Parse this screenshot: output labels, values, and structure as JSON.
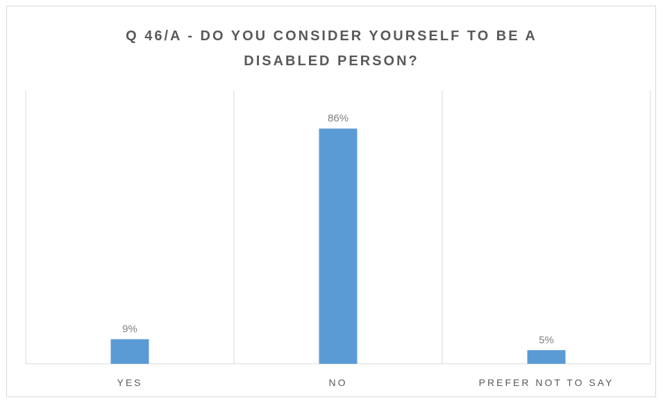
{
  "chart_data": {
    "type": "bar",
    "title": "Q 46/A - DO YOU CONSIDER YOURSELF TO BE A DISABLED PERSON?",
    "title_lines": [
      "Q 46/A - DO YOU CONSIDER YOURSELF TO BE A",
      "DISABLED PERSON?"
    ],
    "categories": [
      "YES",
      "NO",
      "PREFER NOT TO SAY"
    ],
    "values": [
      9,
      86,
      5
    ],
    "data_labels": [
      "9%",
      "86%",
      "5%"
    ],
    "xlabel": "",
    "ylabel": "",
    "ylim": [
      0,
      100
    ],
    "grid": "vertical category separators",
    "legend": "none",
    "bar_color": "#5b9bd5"
  }
}
